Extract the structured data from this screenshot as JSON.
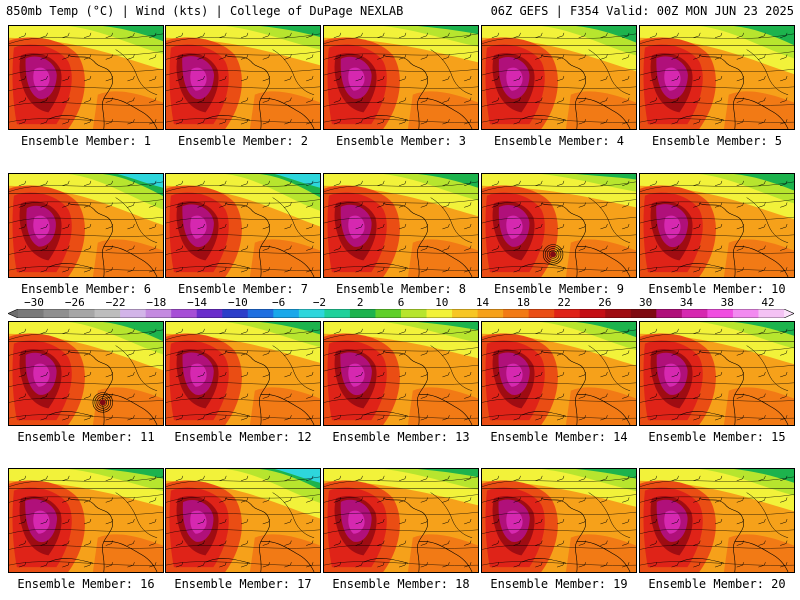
{
  "header": {
    "left": "850mb Temp (°C) | Wind (kts) | College of DuPage NEXLAB",
    "right": "06Z GEFS | F354 Valid: 00Z MON JUN 23 2025"
  },
  "panels": [
    {
      "label": "Ensemble Member: 1",
      "variant": "warm",
      "cool_ne": 0.55,
      "hot": 0.8
    },
    {
      "label": "Ensemble Member: 2",
      "variant": "warm",
      "cool_ne": 0.4,
      "hot": 0.9
    },
    {
      "label": "Ensemble Member: 3",
      "variant": "warm",
      "cool_ne": 0.3,
      "hot": 0.75
    },
    {
      "label": "Ensemble Member: 4",
      "variant": "warm",
      "cool_ne": 0.6,
      "hot": 0.7
    },
    {
      "label": "Ensemble Member: 5",
      "variant": "warm",
      "cool_ne": 0.7,
      "hot": 0.85
    },
    {
      "label": "Ensemble Member: 6",
      "variant": "cool",
      "cool_ne": 0.8,
      "hot": 0.5
    },
    {
      "label": "Ensemble Member: 7",
      "variant": "cool",
      "cool_ne": 0.85,
      "hot": 0.85
    },
    {
      "label": "Ensemble Member: 8",
      "variant": "warm",
      "cool_ne": 0.5,
      "hot": 0.75
    },
    {
      "label": "Ensemble Member: 9",
      "variant": "storm",
      "cool_ne": 0.2,
      "hot": 0.7
    },
    {
      "label": "Ensemble Member: 10",
      "variant": "warm",
      "cool_ne": 0.6,
      "hot": 0.9
    },
    {
      "label": "Ensemble Member: 11",
      "variant": "storm",
      "cool_ne": 0.7,
      "hot": 0.75
    },
    {
      "label": "Ensemble Member: 12",
      "variant": "warm",
      "cool_ne": 0.45,
      "hot": 0.8
    },
    {
      "label": "Ensemble Member: 13",
      "variant": "warm",
      "cool_ne": 0.3,
      "hot": 0.85
    },
    {
      "label": "Ensemble Member: 14",
      "variant": "warm",
      "cool_ne": 0.55,
      "hot": 0.8
    },
    {
      "label": "Ensemble Member: 15",
      "variant": "warm",
      "cool_ne": 0.5,
      "hot": 0.75
    },
    {
      "label": "Ensemble Member: 16",
      "variant": "warm",
      "cool_ne": 0.35,
      "hot": 0.9
    },
    {
      "label": "Ensemble Member: 17",
      "variant": "cool",
      "cool_ne": 0.75,
      "hot": 0.7
    },
    {
      "label": "Ensemble Member: 18",
      "variant": "warm",
      "cool_ne": 0.3,
      "hot": 0.75
    },
    {
      "label": "Ensemble Member: 19",
      "variant": "warm",
      "cool_ne": 0.35,
      "hot": 0.8
    },
    {
      "label": "Ensemble Member: 20",
      "variant": "warm",
      "cool_ne": 0.5,
      "hot": 0.75
    }
  ],
  "colorbar": {
    "labels": [
      "−30",
      "−26",
      "−22",
      "−18",
      "−14",
      "−10",
      "−6",
      "−2",
      "2",
      "6",
      "10",
      "14",
      "18",
      "22",
      "26",
      "30",
      "34",
      "38",
      "42"
    ],
    "colors": [
      "#7a7a7a",
      "#8f8f8f",
      "#a6a6a6",
      "#bdbdbd",
      "#d2b4e8",
      "#c48ae0",
      "#a64fd6",
      "#6a2ecb",
      "#2c3ec9",
      "#1f6fe0",
      "#19a8ea",
      "#2ed6dc",
      "#1fd19b",
      "#1db34d",
      "#5fcf2a",
      "#b7e52e",
      "#f2f23a",
      "#f7c623",
      "#f6a11a",
      "#f27a15",
      "#ea4d14",
      "#df2318",
      "#c40e14",
      "#9f0c12",
      "#7f0a12",
      "#b0107a",
      "#d628b0",
      "#f04ee0",
      "#f28af0",
      "#f4c2f4"
    ]
  }
}
